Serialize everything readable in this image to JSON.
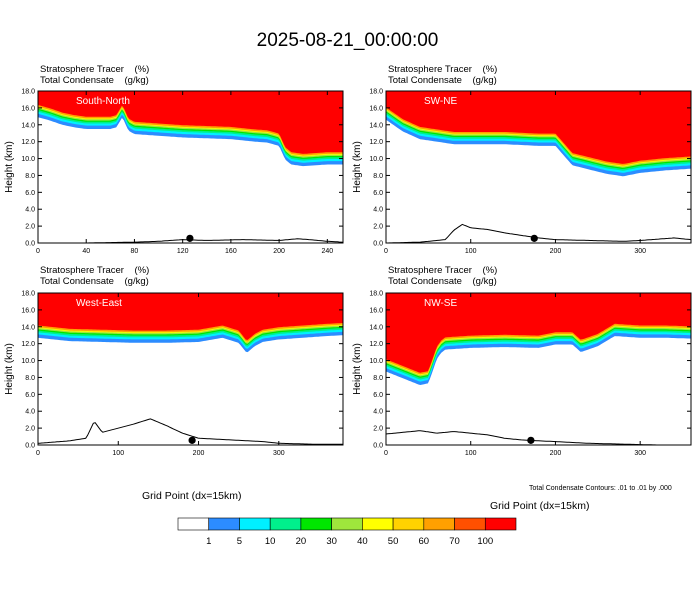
{
  "title": "2025-08-21_00:00:00",
  "subtitle_line1": "Stratosphere Tracer    (%)",
  "subtitle_line2": "Total Condensate    (g/kg)",
  "ylabel": "Height (km)",
  "xlabel": "Grid Point (dx=15km)",
  "footnote": "Total Condensate Contours: .01 to .01 by .000",
  "colorbar": {
    "colors": [
      "#ffffff",
      "#2c8cff",
      "#00f0ff",
      "#00f08c",
      "#00e600",
      "#9fe63c",
      "#ffff00",
      "#ffd200",
      "#ffa000",
      "#ff5000",
      "#ff0000"
    ],
    "labels": [
      "1",
      "5",
      "10",
      "20",
      "30",
      "40",
      "50",
      "60",
      "70",
      "100"
    ]
  },
  "chart_data": [
    {
      "type": "area",
      "panel_label": "South-North",
      "xlim": [
        0,
        253
      ],
      "ylim": [
        0,
        18
      ],
      "xticks": [
        0,
        40,
        80,
        120,
        160,
        200,
        240
      ],
      "yticks": [
        "0.0",
        "2.0",
        "4.0",
        "6.0",
        "8.0",
        "10.0",
        "12.0",
        "14.0",
        "16.0",
        "18.0"
      ],
      "tracer_boundary": {
        "x": [
          0,
          10,
          20,
          30,
          40,
          50,
          60,
          65,
          70,
          75,
          80,
          100,
          120,
          140,
          160,
          180,
          190,
          200,
          205,
          210,
          220,
          240,
          253
        ],
        "y": [
          16.2,
          15.8,
          15.3,
          15.0,
          14.8,
          14.8,
          14.8,
          15.0,
          16.2,
          14.6,
          14.2,
          14.0,
          13.8,
          13.7,
          13.6,
          13.3,
          13.2,
          12.8,
          11.2,
          10.6,
          10.4,
          10.6,
          10.6
        ]
      },
      "terrain": {
        "x": [
          0,
          40,
          80,
          100,
          110,
          120,
          140,
          170,
          200,
          215,
          225,
          240,
          253
        ],
        "y": [
          0,
          0,
          0.1,
          0.2,
          0.3,
          0.4,
          0.3,
          0.4,
          0.3,
          0.5,
          0.4,
          0.2,
          0.1
        ]
      },
      "marker_x": 126
    },
    {
      "type": "area",
      "panel_label": "SW-NE",
      "xlim": [
        0,
        360
      ],
      "ylim": [
        0,
        18
      ],
      "xticks": [
        0,
        100,
        200,
        300
      ],
      "yticks": [
        "0.0",
        "2.0",
        "4.0",
        "6.0",
        "8.0",
        "10.0",
        "12.0",
        "14.0",
        "16.0",
        "18.0"
      ],
      "tracer_boundary": {
        "x": [
          0,
          20,
          40,
          60,
          80,
          100,
          140,
          180,
          200,
          220,
          240,
          260,
          280,
          300,
          330,
          360
        ],
        "y": [
          15.9,
          14.5,
          13.6,
          13.3,
          13.0,
          13.0,
          13.0,
          12.8,
          12.8,
          10.5,
          10.0,
          9.5,
          9.2,
          9.6,
          9.9,
          10.1
        ]
      },
      "terrain": {
        "x": [
          0,
          40,
          70,
          80,
          90,
          100,
          120,
          140,
          160,
          180,
          200,
          240,
          280,
          300,
          340,
          360
        ],
        "y": [
          0,
          0.1,
          0.4,
          1.5,
          2.2,
          1.8,
          1.6,
          1.2,
          0.9,
          0.6,
          0.4,
          0.3,
          0.2,
          0.3,
          0.6,
          0.4
        ]
      },
      "marker_x": 175
    },
    {
      "type": "area",
      "panel_label": "West-East",
      "xlim": [
        0,
        380
      ],
      "ylim": [
        0,
        18
      ],
      "xticks": [
        0,
        100,
        200,
        300
      ],
      "yticks": [
        "0.0",
        "2.0",
        "4.0",
        "6.0",
        "8.0",
        "10.0",
        "12.0",
        "14.0",
        "16.0",
        "18.0"
      ],
      "tracer_boundary": {
        "x": [
          0,
          40,
          80,
          120,
          160,
          200,
          230,
          250,
          260,
          270,
          280,
          300,
          330,
          360,
          380
        ],
        "y": [
          14.0,
          13.6,
          13.5,
          13.4,
          13.4,
          13.5,
          14.0,
          13.4,
          12.2,
          13.0,
          13.5,
          13.8,
          14.0,
          14.2,
          14.3
        ]
      },
      "terrain": {
        "x": [
          0,
          40,
          60,
          70,
          80,
          100,
          120,
          140,
          160,
          180,
          200,
          240,
          280,
          300,
          340,
          380
        ],
        "y": [
          0.2,
          0.5,
          0.8,
          2.8,
          1.5,
          2.0,
          2.5,
          3.1,
          2.3,
          1.4,
          0.8,
          0.6,
          0.4,
          0.2,
          0.1,
          0.1
        ]
      },
      "marker_x": 192
    },
    {
      "type": "area",
      "panel_label": "NW-SE",
      "xlim": [
        0,
        360
      ],
      "ylim": [
        0,
        18
      ],
      "xticks": [
        0,
        100,
        200,
        300
      ],
      "yticks": [
        "0.0",
        "2.0",
        "4.0",
        "6.0",
        "8.0",
        "10.0",
        "12.0",
        "14.0",
        "16.0",
        "18.0"
      ],
      "tracer_boundary": {
        "x": [
          0,
          20,
          40,
          50,
          60,
          65,
          70,
          100,
          140,
          180,
          200,
          220,
          230,
          250,
          270,
          300,
          330,
          360
        ],
        "y": [
          10.0,
          9.2,
          8.4,
          8.6,
          11.5,
          12.2,
          12.6,
          12.8,
          12.9,
          12.8,
          13.2,
          13.2,
          12.3,
          13.0,
          14.2,
          14.0,
          14.0,
          13.9
        ]
      },
      "terrain": {
        "x": [
          0,
          20,
          40,
          60,
          80,
          100,
          120,
          140,
          160,
          180,
          200,
          240,
          280,
          320,
          360
        ],
        "y": [
          1.3,
          1.5,
          1.7,
          1.4,
          1.6,
          1.4,
          1.2,
          0.8,
          0.6,
          0.5,
          0.4,
          0.2,
          0.1,
          0.0,
          0.0
        ]
      },
      "marker_x": 171
    }
  ]
}
